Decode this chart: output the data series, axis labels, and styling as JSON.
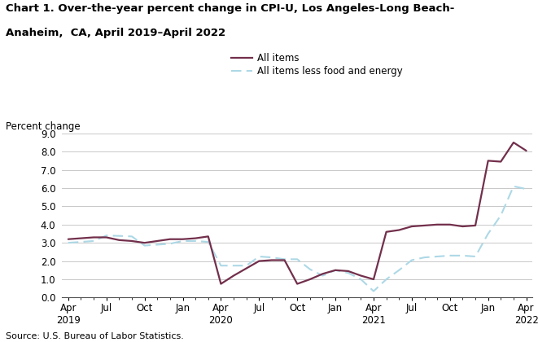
{
  "title_line1": "Chart 1. Over-the-year percent change in CPI-U, Los Angeles-Long Beach-",
  "title_line2": "Anaheim,  CA, April 2019–April 2022",
  "ylabel": "Percent change",
  "source": "Source: U.S. Bureau of Labor Statistics.",
  "ylim": [
    0.0,
    9.0
  ],
  "yticks": [
    0.0,
    1.0,
    2.0,
    3.0,
    4.0,
    5.0,
    6.0,
    7.0,
    8.0,
    9.0
  ],
  "xtick_positions": [
    0,
    3,
    6,
    9,
    12,
    15,
    18,
    21,
    24,
    27,
    30,
    33,
    36
  ],
  "xtick_labels_top": [
    "Apr",
    "Jul",
    "Oct",
    "Jan",
    "Apr",
    "Jul",
    "Oct",
    "Jan",
    "Apr",
    "Jul",
    "Oct",
    "Jan",
    "Apr"
  ],
  "xtick_labels_year": [
    "2019",
    "",
    "",
    "",
    "2020",
    "",
    "",
    "",
    "2021",
    "",
    "",
    "",
    "2022"
  ],
  "all_items_y": [
    3.2,
    3.25,
    3.3,
    3.3,
    3.15,
    3.1,
    3.0,
    3.1,
    3.2,
    3.2,
    3.25,
    3.35,
    0.75,
    1.2,
    1.6,
    2.0,
    2.05,
    2.05,
    0.75,
    1.0,
    1.3,
    1.5,
    1.45,
    1.2,
    1.0,
    3.6,
    3.7,
    3.9,
    3.95,
    4.0,
    4.0,
    3.9,
    3.95,
    7.5,
    7.45,
    8.5,
    8.05
  ],
  "core_items_y": [
    3.0,
    3.05,
    3.1,
    3.4,
    3.38,
    3.35,
    2.85,
    2.9,
    2.95,
    3.1,
    3.1,
    3.05,
    1.75,
    1.75,
    1.75,
    2.25,
    2.2,
    2.1,
    2.1,
    1.55,
    1.2,
    1.5,
    1.35,
    1.0,
    0.35,
    1.0,
    1.5,
    2.05,
    2.2,
    2.25,
    2.3,
    2.3,
    2.25,
    3.5,
    4.5,
    6.1,
    5.95
  ],
  "all_items_color": "#722F4B",
  "core_items_color": "#add8e6",
  "all_items_label": "All items",
  "core_items_label": "All items less food and energy",
  "background_color": "#ffffff",
  "grid_color": "#c8c8c8"
}
